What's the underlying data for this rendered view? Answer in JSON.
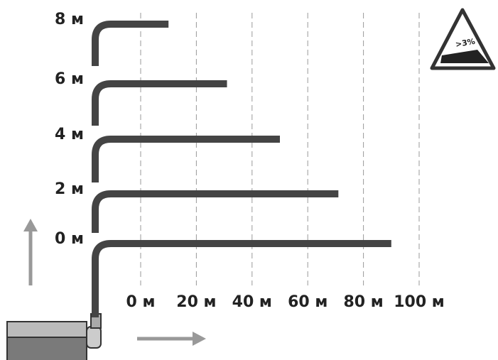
{
  "chart_data": {
    "type": "bar",
    "orientation": "horizontal",
    "categories": [
      "8 м",
      "6 м",
      "4 м",
      "2 м",
      "0 м"
    ],
    "values": [
      10,
      31,
      50,
      71,
      90
    ],
    "color": "#444444",
    "xlim": [
      0,
      100
    ],
    "xticks": [
      {
        "value": 0,
        "label": "0 м"
      },
      {
        "value": 20,
        "label": "20 м"
      },
      {
        "value": 40,
        "label": "40 м"
      },
      {
        "value": 60,
        "label": "60 м"
      },
      {
        "value": 80,
        "label": "80 м"
      },
      {
        "value": 100,
        "label": "100 м"
      }
    ],
    "grid": true,
    "annotation": ">3%"
  }
}
